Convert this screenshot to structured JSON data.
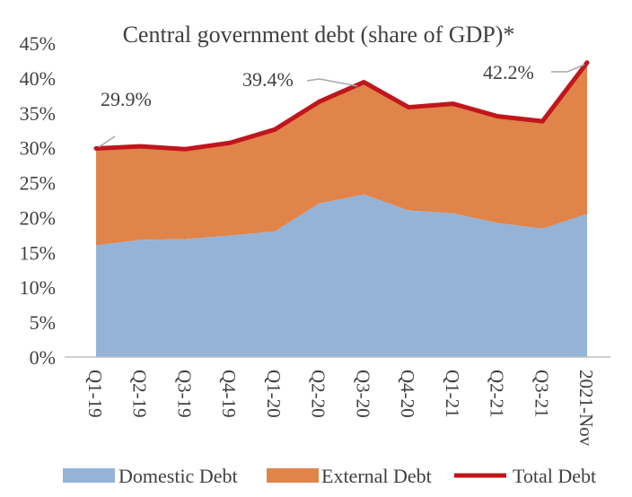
{
  "chart_data": {
    "type": "area",
    "title": "Central government debt (share of GDP)*",
    "xlabel": "",
    "ylabel": "",
    "categories": [
      "Q1-19",
      "Q2-19",
      "Q3-19",
      "Q4-19",
      "Q1-20",
      "Q2-20",
      "Q3-20",
      "Q4-20",
      "Q1-21",
      "Q2-21",
      "Q3-21",
      "2021-Nov"
    ],
    "ylim": [
      0,
      45
    ],
    "yticks": [
      "0%",
      "5%",
      "10%",
      "15%",
      "20%",
      "25%",
      "30%",
      "35%",
      "40%",
      "45%"
    ],
    "stacked": true,
    "grid": false,
    "legend_position": "bottom",
    "series": [
      {
        "name": "Domestic Debt",
        "type": "area",
        "color": "#95b3d7",
        "values": [
          16.0,
          16.8,
          16.9,
          17.4,
          18.0,
          22.0,
          23.3,
          21.0,
          20.6,
          19.2,
          18.4,
          20.5
        ]
      },
      {
        "name": "External Debt",
        "type": "area",
        "color": "#e0844a",
        "values": [
          13.9,
          13.4,
          12.9,
          13.3,
          14.6,
          14.6,
          16.1,
          14.8,
          15.7,
          15.3,
          15.4,
          21.7
        ]
      },
      {
        "name": "Total Debt",
        "type": "line",
        "color": "#c0161c",
        "values": [
          29.9,
          30.2,
          29.8,
          30.7,
          32.6,
          36.6,
          39.4,
          35.8,
          36.3,
          34.5,
          33.8,
          42.2
        ]
      }
    ],
    "annotations": [
      {
        "index": 0,
        "label": "29.9%"
      },
      {
        "index": 6,
        "label": "39.4%"
      },
      {
        "index": 11,
        "label": "42.2%"
      }
    ]
  }
}
